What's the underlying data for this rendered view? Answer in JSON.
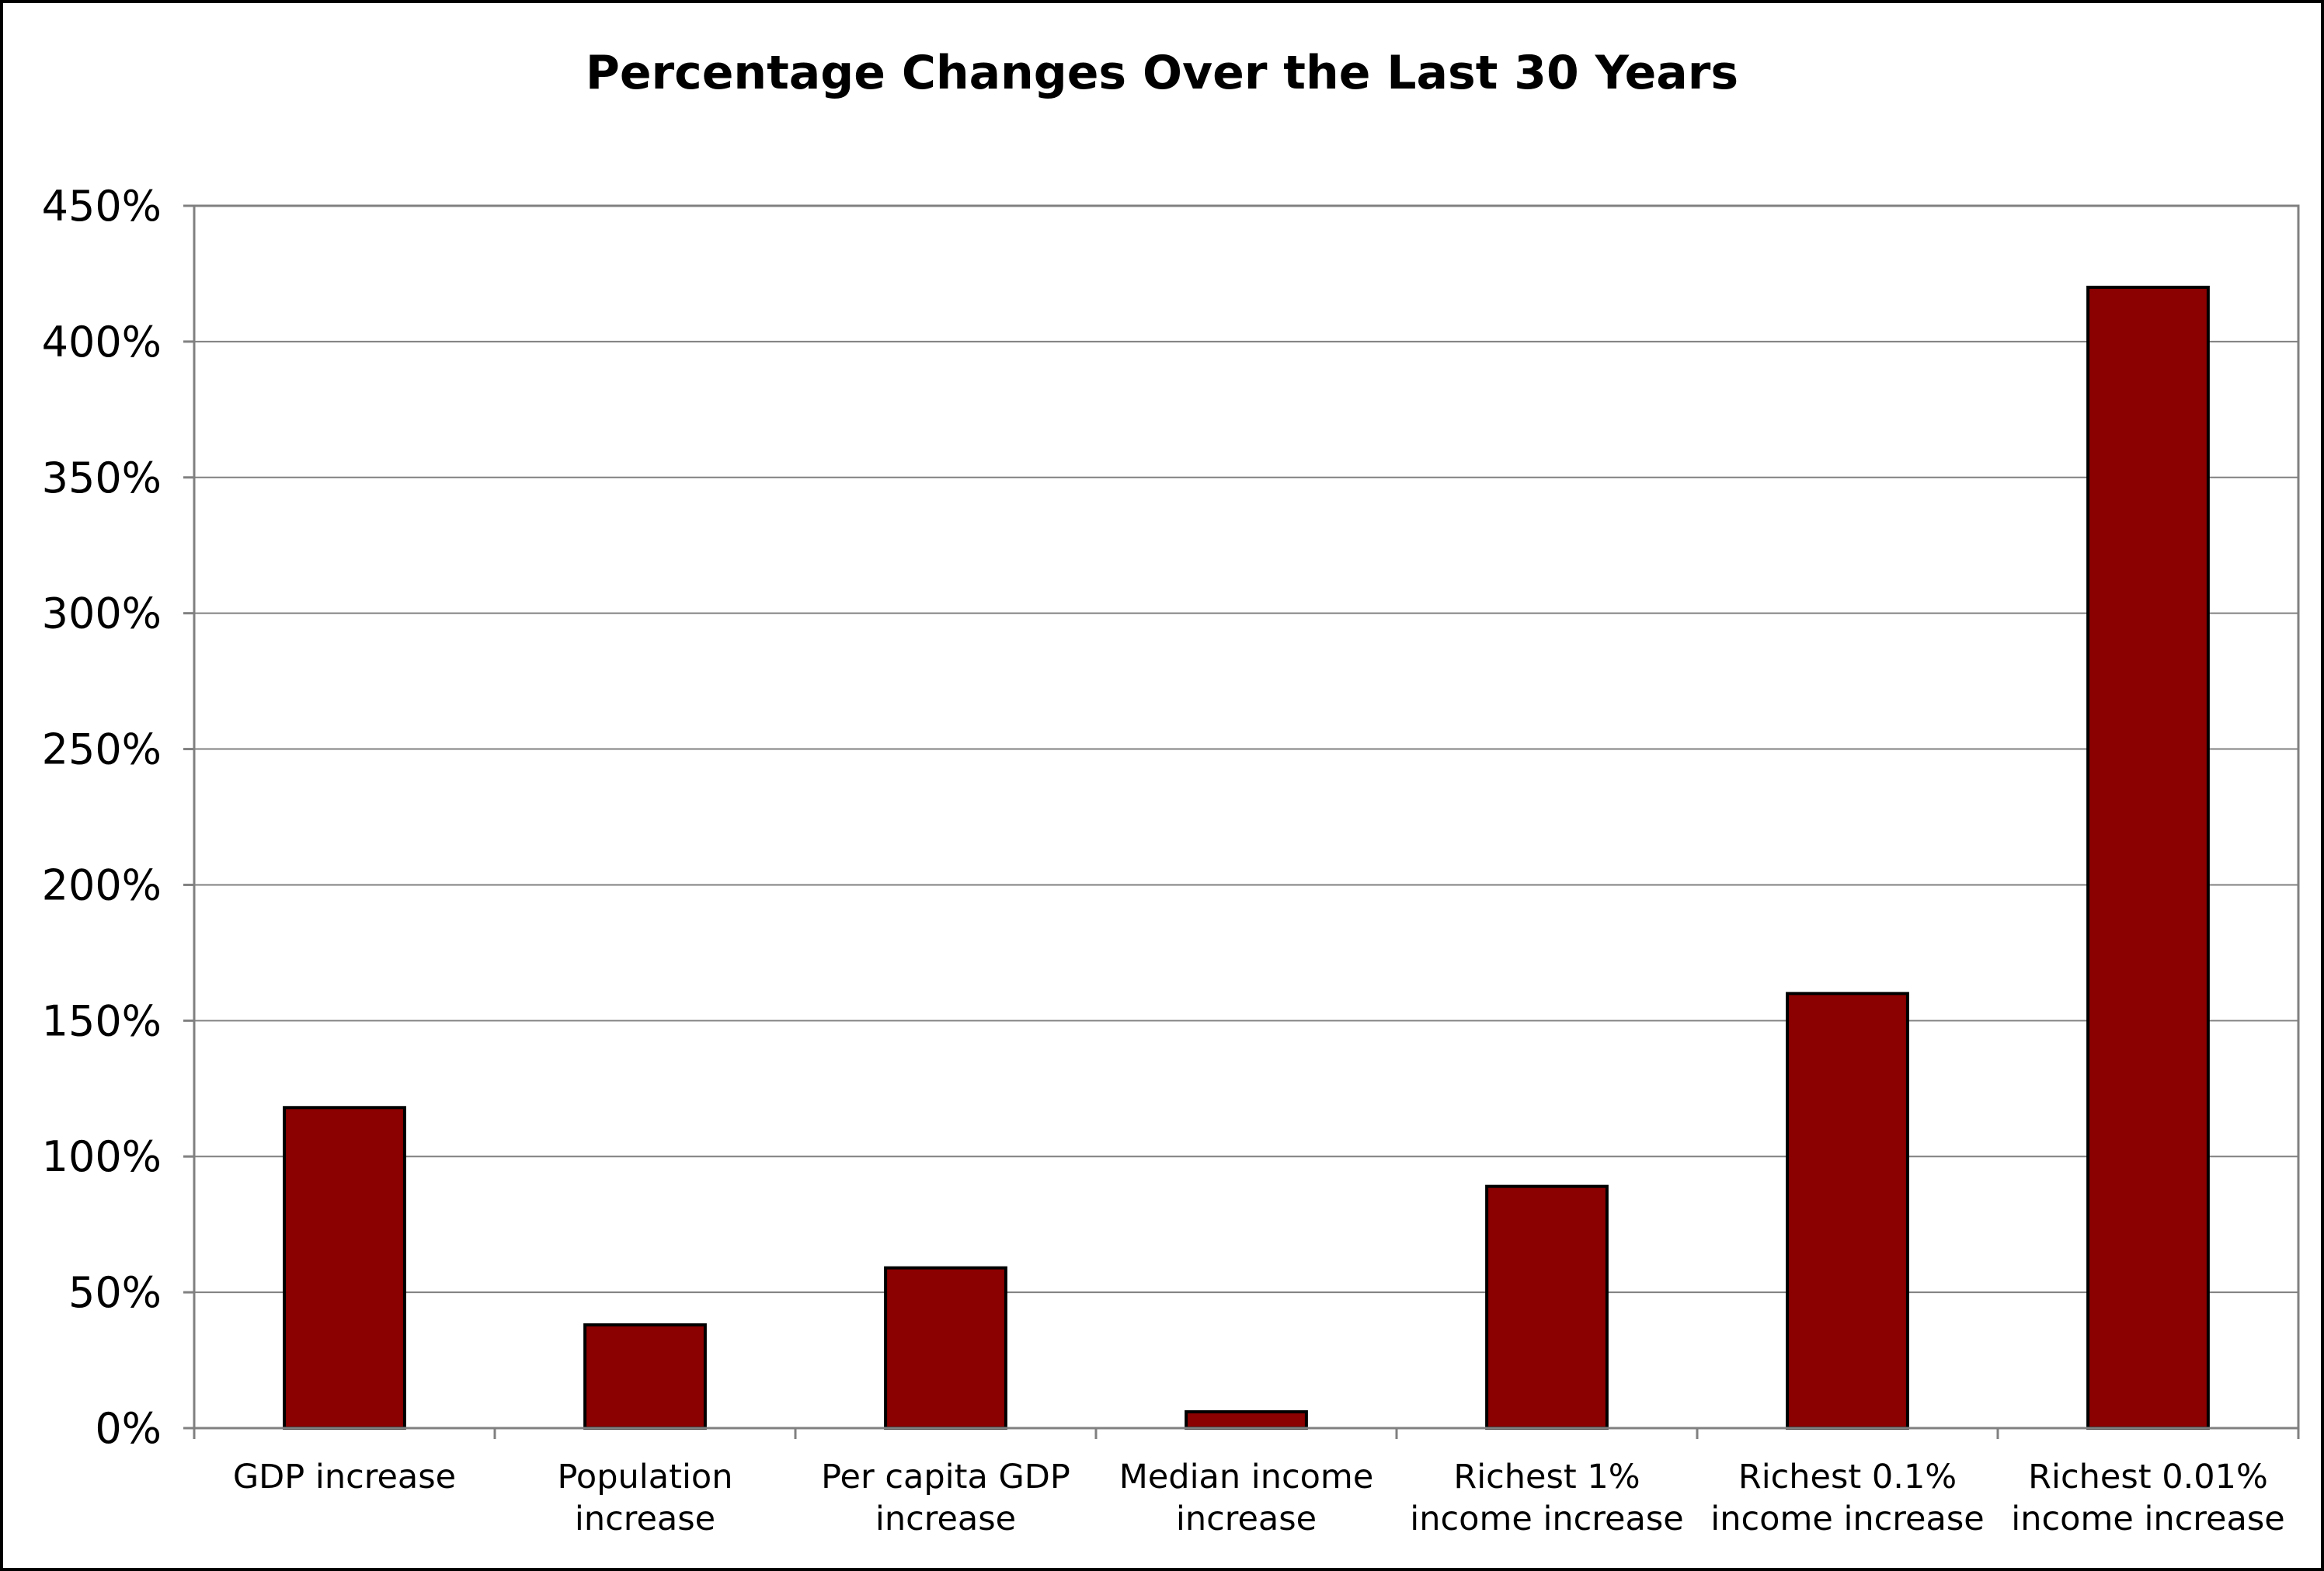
{
  "chart_data": {
    "type": "bar",
    "title": "Percentage Changes Over the Last 30 Years",
    "xlabel": "",
    "ylabel": "",
    "categories": [
      [
        "GDP increase"
      ],
      [
        "Population",
        "increase"
      ],
      [
        "Per capita GDP",
        "increase"
      ],
      [
        "Median income",
        "increase"
      ],
      [
        "Richest 1%",
        "income increase"
      ],
      [
        "Richest 0.1%",
        "income increase"
      ],
      [
        "Richest 0.01%",
        "income increase"
      ]
    ],
    "values": [
      118,
      38,
      59,
      6,
      89,
      160,
      420
    ],
    "ylim": [
      0,
      450
    ],
    "yticks": [
      0,
      50,
      100,
      150,
      200,
      250,
      300,
      350,
      400,
      450
    ],
    "ytick_labels": [
      "0%",
      "50%",
      "100%",
      "150%",
      "200%",
      "250%",
      "300%",
      "350%",
      "400%",
      "450%"
    ],
    "grid": true,
    "legend": "none",
    "colors": {
      "bar_fill": "#8b0000",
      "bar_stroke": "#000000",
      "grid": "#808080",
      "plot_border": "#808080",
      "axis": "#808080"
    }
  }
}
